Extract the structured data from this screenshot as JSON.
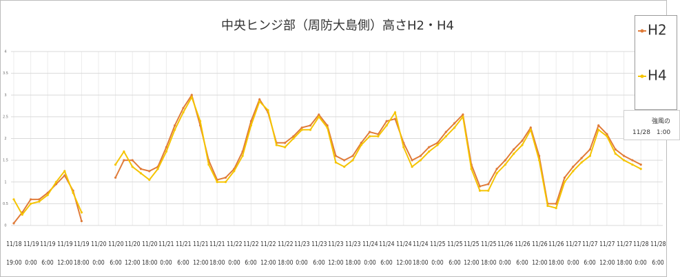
{
  "chart_data": {
    "type": "line",
    "title": "中央ヒンジ部（周防大島側）高さH2・H4",
    "categories": [
      "11/18 19:00",
      null,
      "11/19 0:00",
      null,
      "11/19 6:00",
      null,
      "11/19 12:00",
      null,
      "11/19 18:00",
      null,
      "11/20 0:00",
      null,
      "11/20 6:00",
      null,
      "11/20 12:00",
      null,
      "11/20 18:00",
      null,
      "11/21 0:00",
      null,
      "11/21 6:00",
      null,
      "11/21 12:00",
      null,
      "11/21 18:00",
      null,
      "11/22 0:00",
      null,
      "11/22 6:00",
      null,
      "11/22 12:00",
      null,
      "11/22 18:00",
      null,
      "11/23 0:00",
      null,
      "11/23 6:00",
      null,
      "11/23 12:00",
      null,
      "11/23 18:00",
      null,
      "11/24 0:00",
      null,
      "11/24 6:00",
      null,
      "11/24 12:00",
      null,
      "11/24 18:00",
      null,
      "11/25 0:00",
      null,
      "11/25 6:00",
      null,
      "11/25 12:00",
      null,
      "11/25 18:00",
      null,
      "11/26 0:00",
      null,
      "11/26 6:00",
      null,
      "11/26 12:00",
      null,
      "11/26 18:00",
      null,
      "11/27 0:00",
      null,
      "11/27 6:00",
      null,
      "11/27 12:00",
      null,
      "11/27 18:00",
      null,
      "11/28 0:00",
      null,
      "11/28 6:00"
    ],
    "series": [
      {
        "name": "H2",
        "color": "#e07b39",
        "values": [
          0.05,
          0.3,
          0.6,
          0.6,
          0.75,
          0.95,
          1.15,
          0.8,
          0.1,
          null,
          null,
          null,
          1.1,
          1.5,
          1.5,
          1.3,
          1.25,
          1.35,
          1.8,
          2.3,
          2.7,
          3.0,
          2.3,
          1.5,
          1.05,
          1.1,
          1.3,
          1.7,
          2.4,
          2.9,
          2.6,
          1.9,
          1.9,
          2.05,
          2.25,
          2.3,
          2.55,
          2.3,
          1.6,
          1.5,
          1.6,
          1.9,
          2.15,
          2.1,
          2.4,
          2.45,
          1.9,
          1.5,
          1.6,
          1.8,
          1.9,
          2.15,
          2.35,
          2.55,
          1.4,
          0.9,
          0.95,
          1.3,
          1.5,
          1.75,
          1.95,
          2.25,
          1.6,
          0.5,
          0.5,
          1.1,
          1.35,
          1.55,
          1.75,
          2.3,
          2.1,
          1.75,
          1.6,
          1.5,
          1.4,
          null,
          null
        ]
      },
      {
        "name": "H4",
        "color": "#f5c400",
        "values": [
          0.6,
          0.25,
          0.5,
          0.55,
          0.7,
          1.0,
          1.25,
          0.75,
          0.3,
          null,
          null,
          null,
          1.4,
          1.7,
          1.35,
          1.2,
          1.05,
          1.3,
          1.7,
          2.2,
          2.6,
          2.95,
          2.4,
          1.4,
          1.0,
          1.0,
          1.25,
          1.6,
          2.3,
          2.85,
          2.65,
          1.85,
          1.8,
          2.0,
          2.2,
          2.2,
          2.5,
          2.25,
          1.45,
          1.35,
          1.5,
          1.85,
          2.05,
          2.05,
          2.3,
          2.6,
          1.8,
          1.35,
          1.5,
          1.7,
          1.85,
          2.05,
          2.25,
          2.5,
          1.3,
          0.8,
          0.8,
          1.2,
          1.4,
          1.65,
          1.85,
          2.2,
          1.5,
          0.45,
          0.4,
          1.0,
          1.25,
          1.45,
          1.6,
          2.2,
          2.05,
          1.65,
          1.5,
          1.4,
          1.3,
          null,
          null
        ]
      }
    ],
    "ylim": [
      0,
      4
    ],
    "yticks": [
      0,
      0.5,
      1,
      1.5,
      2,
      2.5,
      3,
      3.5,
      4
    ],
    "grid": true,
    "legend": "top-right",
    "annotations": [
      "強風の",
      "11/28　1:00"
    ]
  }
}
